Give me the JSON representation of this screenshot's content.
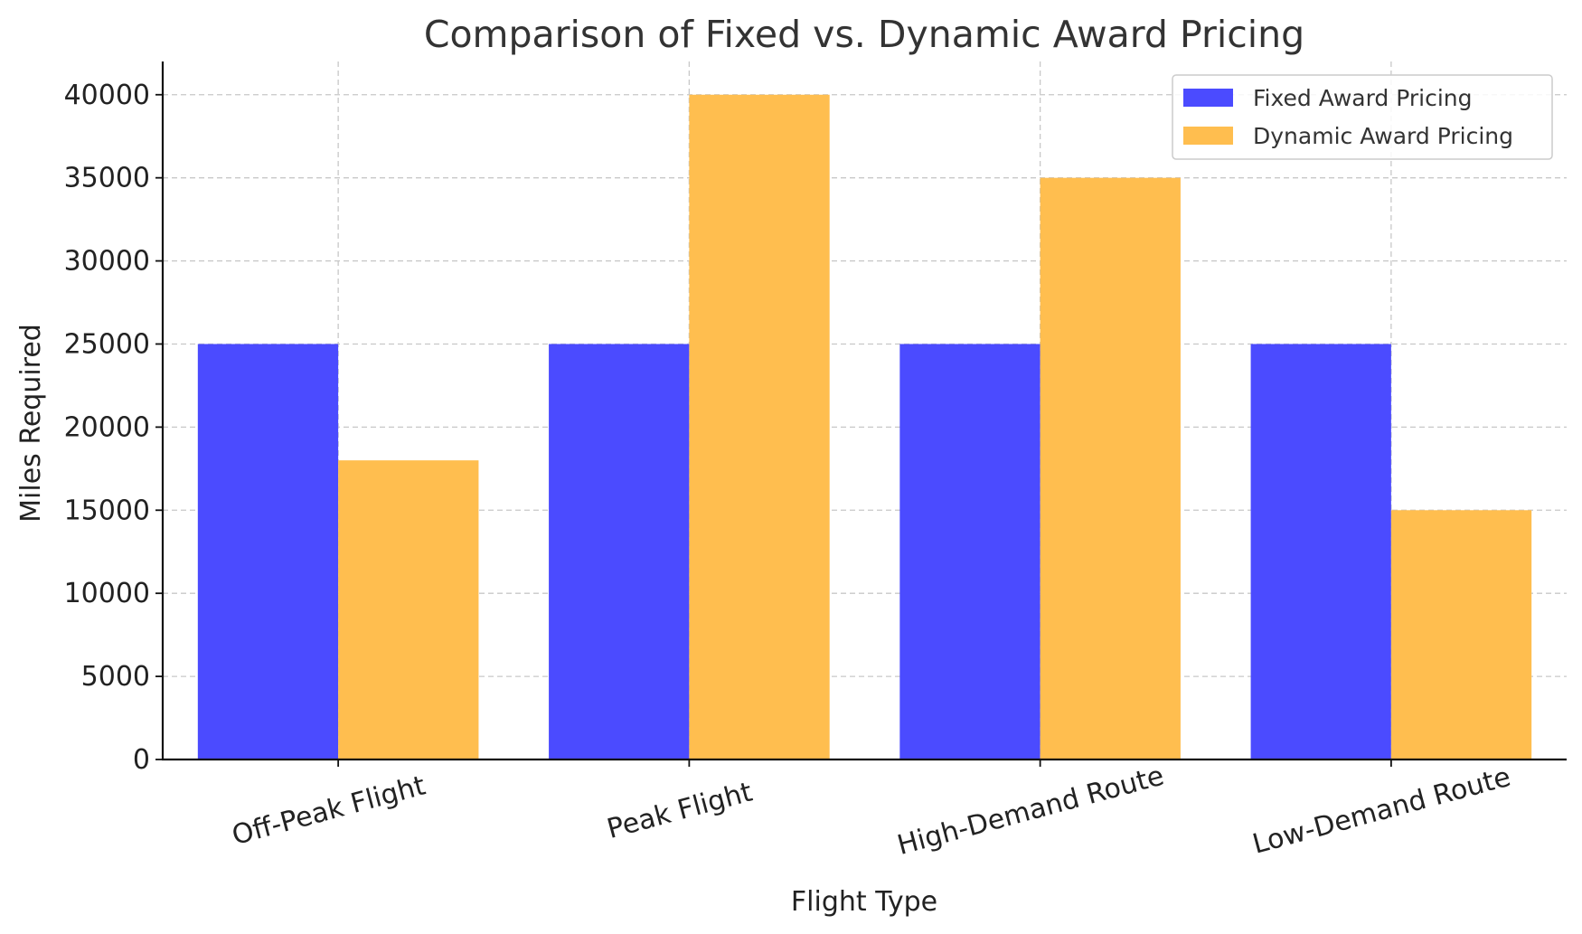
{
  "chart_data": {
    "type": "bar",
    "title": "Comparison of Fixed vs. Dynamic Award Pricing",
    "xlabel": "Flight Type",
    "ylabel": "Miles Required",
    "categories": [
      "Off-Peak Flight",
      "Peak Flight",
      "High-Demand Route",
      "Low-Demand Route"
    ],
    "series": [
      {
        "name": "Fixed Award Pricing",
        "color": "#4b4bff",
        "values": [
          25000,
          25000,
          25000,
          25000
        ]
      },
      {
        "name": "Dynamic Award Pricing",
        "color": "#ffbe4f",
        "values": [
          18000,
          40000,
          35000,
          15000
        ]
      }
    ],
    "ylim": [
      0,
      42000
    ],
    "yticks": [
      0,
      5000,
      10000,
      15000,
      20000,
      25000,
      30000,
      35000,
      40000
    ],
    "grid": true,
    "legend_position": "top-right"
  }
}
